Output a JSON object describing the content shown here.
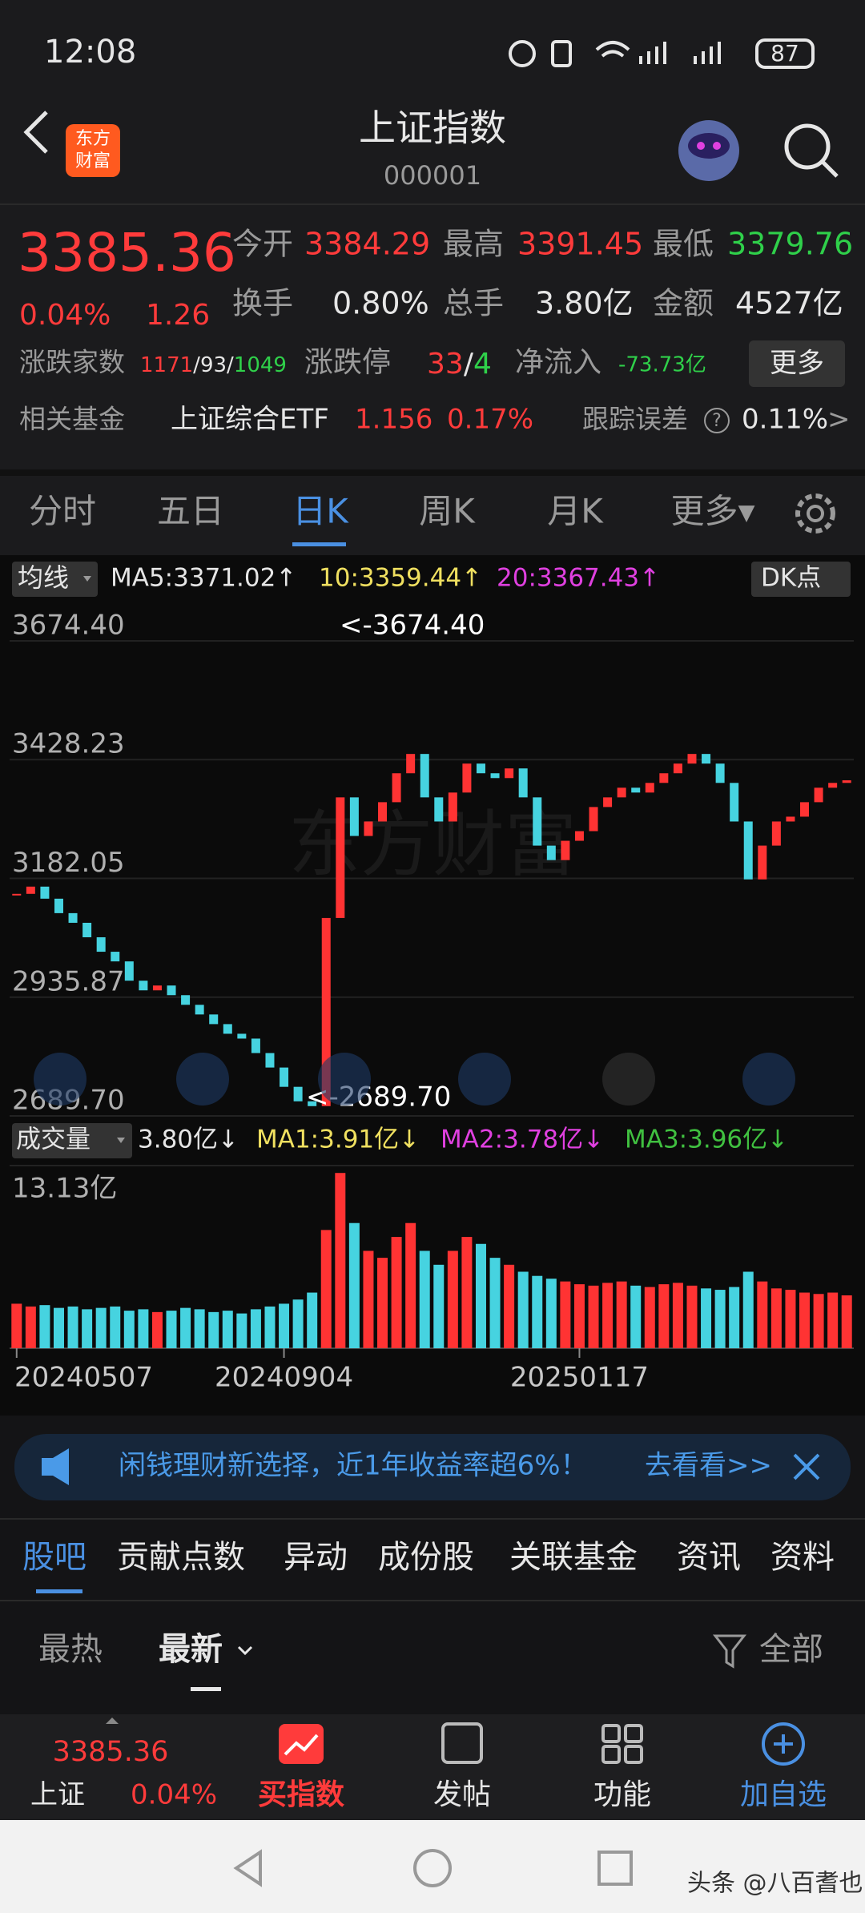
{
  "status_bar": {
    "time": "12:08",
    "battery": "87"
  },
  "header": {
    "logo": [
      "东方",
      "财富"
    ],
    "title": "上证指数",
    "code": "000001"
  },
  "quote": {
    "price": "3385.36",
    "change_pct": "0.04%",
    "change": "1.26",
    "fields": [
      {
        "label": "今开",
        "value": "3384.29"
      },
      {
        "label": "最高",
        "value": "3391.45"
      },
      {
        "label": "最低",
        "value": "3379.76"
      },
      {
        "label": "换手",
        "value": "0.80%"
      },
      {
        "label": "总手",
        "value": "3.80亿"
      },
      {
        "label": "金额",
        "value": "4527亿"
      }
    ],
    "breadth": {
      "label": "涨跌家数",
      "up": "1171",
      "flat": "93",
      "down": "1049",
      "separator": "/"
    },
    "limit": {
      "label": "涨跌停",
      "up": "33",
      "down": "4",
      "separator": "/"
    },
    "net_inflow": {
      "label": "净流入",
      "value": "-73.73亿"
    },
    "more": "更多"
  },
  "fund": {
    "label": "相关基金",
    "name": "上证综合ETF",
    "price": "1.156",
    "pct": "0.17%",
    "tracking_label": "跟踪误差",
    "help": "?",
    "tracking": "0.11%",
    "chevron": ">"
  },
  "tabs": [
    "分时",
    "五日",
    "日K",
    "周K",
    "月K",
    "更多▾"
  ],
  "ma_bar": {
    "label": "均线",
    "ma5": "MA5:3371.02↑",
    "ma10": "10:3359.44↑",
    "ma20": "20:3367.43↑",
    "button": "DK点"
  },
  "volume_bar": {
    "label": "成交量",
    "vol": "3.80亿↓",
    "ma1": "MA1:3.91亿↓",
    "ma2": "MA2:3.78亿↓",
    "ma3": "MA3:3.96亿↓"
  },
  "watermark": "东方财富",
  "chart_data": [
    {
      "type": "candlestick",
      "values": [
        3150,
        3165,
        3140,
        3110,
        3090,
        3060,
        3030,
        3010,
        2970,
        2950,
        2960,
        2940,
        2920,
        2900,
        2880,
        2860,
        2850,
        2820,
        2790,
        2750,
        2720,
        2710,
        3100,
        3350,
        3270,
        3300,
        3340,
        3400,
        3440,
        3350,
        3300,
        3360,
        3420,
        3400,
        3390,
        3410,
        3350,
        3250,
        3220,
        3260,
        3280,
        3330,
        3350,
        3370,
        3360,
        3380,
        3400,
        3420,
        3440,
        3420,
        3380,
        3300,
        3180,
        3250,
        3300,
        3310,
        3340,
        3370,
        3380,
        3385.36
      ],
      "ylim": [
        2689.7,
        3674.4
      ],
      "yticks": [
        {
          "value": 2689.7,
          "label": "2689.70"
        },
        2935.87,
        3182.05,
        3428.23,
        {
          "value": 3674.4,
          "label": "3674.40"
        }
      ],
      "annotations": [
        "<-3674.40",
        "<-2689.70"
      ],
      "up_color": "#ff3333",
      "down_color": "#46d3e0"
    },
    {
      "type": "bar",
      "categories": [
        "20240507",
        null,
        null,
        null,
        null,
        null,
        null,
        null,
        null,
        null,
        null,
        null,
        null,
        null,
        null,
        null,
        null,
        null,
        null,
        "20240904",
        null,
        null,
        null,
        null,
        null,
        null,
        null,
        null,
        null,
        null,
        null,
        null,
        null,
        null,
        null,
        null,
        null,
        null,
        null,
        null,
        "20250117",
        null,
        null,
        null,
        null,
        null,
        null,
        null,
        null,
        null,
        null,
        null,
        null,
        null,
        null,
        null,
        null,
        null,
        null,
        null
      ],
      "values": [
        3.2,
        3.0,
        3.1,
        2.9,
        3.0,
        2.8,
        2.9,
        3.0,
        2.7,
        2.8,
        2.6,
        2.7,
        2.9,
        2.8,
        2.6,
        2.7,
        2.5,
        2.8,
        3.0,
        3.2,
        3.5,
        4.0,
        8.5,
        12.6,
        9.0,
        7.0,
        6.5,
        8.0,
        9.0,
        7.0,
        6.0,
        7.0,
        8.0,
        7.5,
        6.5,
        6.0,
        5.5,
        5.2,
        5.0,
        4.8,
        4.6,
        4.5,
        4.7,
        4.8,
        4.5,
        4.4,
        4.6,
        4.7,
        4.5,
        4.3,
        4.2,
        4.4,
        5.5,
        4.8,
        4.3,
        4.2,
        4.0,
        3.9,
        4.0,
        3.8
      ],
      "ylim": [
        0,
        13.13
      ],
      "yticks": [
        {
          "value": 13.13,
          "label": "13.13亿"
        }
      ]
    }
  ],
  "ad": {
    "text": "闲钱理财新选择，近1年收益率超6%！",
    "link": "去看看>>"
  },
  "section_tabs": [
    "股吧",
    "贡献点数",
    "异动",
    "成份股",
    "关联基金",
    "资讯",
    "资料"
  ],
  "filters": {
    "hot": "最热",
    "new": "最新",
    "all": "全部"
  },
  "bottom_bar": {
    "price": "3385.36",
    "name": "上证",
    "pct": "0.04%",
    "buttons": [
      "买指数",
      "发帖",
      "功能",
      "加自选"
    ]
  },
  "nav_watermark": "头条 @八百耆也"
}
